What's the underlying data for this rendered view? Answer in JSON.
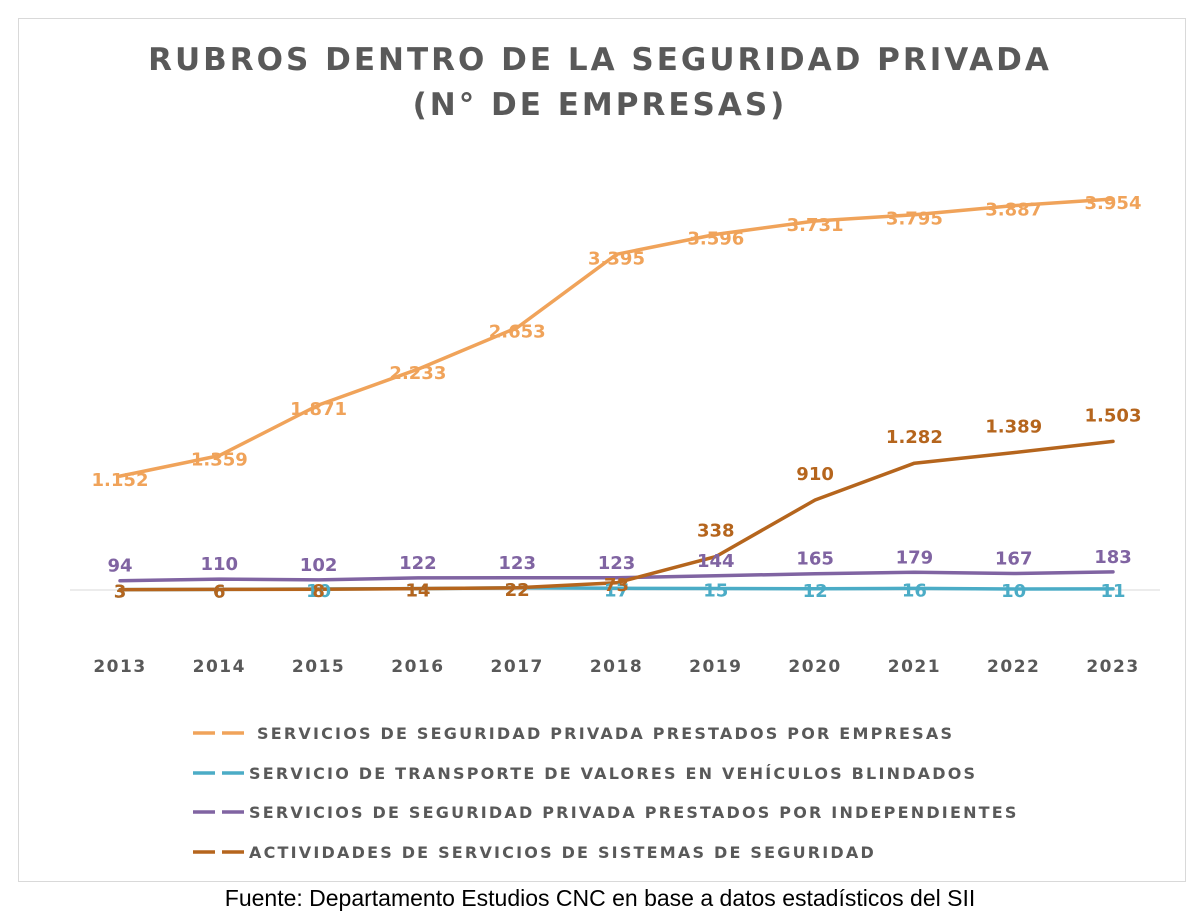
{
  "chart_data": {
    "type": "line",
    "title_lines": [
      "RUBROS DENTRO DE LA SEGURIDAD PRIVADA",
      "(N° DE EMPRESAS)"
    ],
    "categories": [
      "2013",
      "2014",
      "2015",
      "2016",
      "2017",
      "2018",
      "2019",
      "2020",
      "2021",
      "2022",
      "2023"
    ],
    "series": [
      {
        "name": "SERVICIOS DE SEGURIDAD PRIVADA PRESTADOS POR EMPRESAS",
        "color": "#f0a35a",
        "values": [
          1152,
          1359,
          1871,
          2233,
          2653,
          3395,
          3596,
          3731,
          3795,
          3887,
          3954
        ],
        "labels": [
          "1.152",
          "1.359",
          "1.871",
          "2.233",
          "2.653",
          "3.395",
          "3.596",
          "3.731",
          "3.795",
          "3.887",
          "3.954"
        ]
      },
      {
        "name": "SERVICIO DE TRANSPORTE DE VALORES EN VEHÍCULOS BLINDADOS",
        "color": "#4bacc6",
        "values": [
          3,
          6,
          10,
          14,
          22,
          17,
          15,
          12,
          16,
          10,
          11
        ],
        "labels": [
          "3",
          "6",
          "10",
          "14",
          "22",
          "17",
          "15",
          "12",
          "16",
          "10",
          "11"
        ]
      },
      {
        "name": "SERVICIOS DE SEGURIDAD PRIVADA PRESTADOS POR INDEPENDIENTES",
        "color": "#8064a2",
        "values": [
          94,
          110,
          102,
          122,
          123,
          123,
          144,
          165,
          179,
          167,
          183
        ],
        "labels": [
          "94",
          "110",
          "102",
          "122",
          "123",
          "123",
          "144",
          "165",
          "179",
          "167",
          "183"
        ]
      },
      {
        "name": "ACTIVIDADES DE SERVICIOS DE SISTEMAS DE SEGURIDAD",
        "color": "#b5651d",
        "values": [
          3,
          6,
          8,
          14,
          22,
          73,
          338,
          910,
          1282,
          1389,
          1503
        ],
        "labels": [
          "3",
          "6",
          "8",
          "14",
          "22",
          "73",
          "338",
          "910",
          "1.282",
          "1.389",
          "1.503"
        ]
      }
    ],
    "ylim": [
      0,
      4500
    ],
    "grid": false,
    "legend_position": "bottom"
  },
  "source": "Fuente: Departamento Estudios CNC en base a datos estadísticos del SII"
}
